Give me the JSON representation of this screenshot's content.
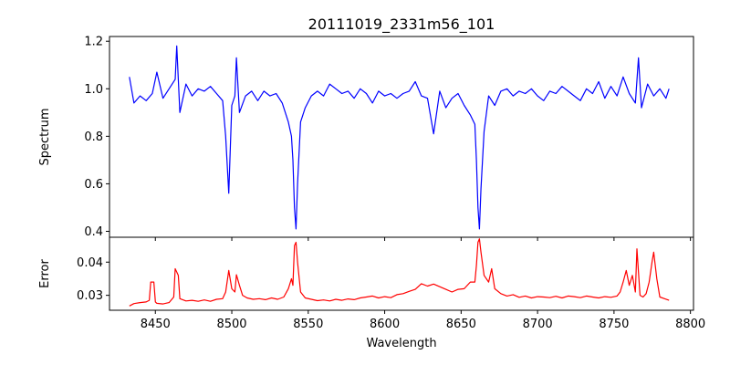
{
  "chart_data": [
    {
      "type": "line",
      "title": "20111019_2331m56_101",
      "ylabel": "Spectrum",
      "xlabel": "",
      "xlim": [
        8420,
        8802
      ],
      "ylim": [
        0.375,
        1.22
      ],
      "xticks": [
        8450,
        8500,
        8550,
        8600,
        8650,
        8700,
        8750,
        8800
      ],
      "yticks": [
        0.4,
        0.6,
        0.8,
        1.0,
        1.2
      ],
      "ytick_labels": [
        "0.4",
        "0.6",
        "0.8",
        "1.0",
        "1.2"
      ],
      "series": [
        {
          "name": "spectrum",
          "color": "#0000ff",
          "x": [
            8433,
            8436,
            8440,
            8444,
            8448,
            8451,
            8455,
            8459,
            8463,
            8464,
            8466,
            8470,
            8474,
            8478,
            8482,
            8486,
            8490,
            8494,
            8496,
            8498,
            8500,
            8502,
            8503,
            8505,
            8509,
            8513,
            8517,
            8521,
            8525,
            8529,
            8533,
            8537,
            8539,
            8540,
            8541,
            8542,
            8543,
            8545,
            8548,
            8552,
            8556,
            8560,
            8564,
            8568,
            8572,
            8576,
            8580,
            8584,
            8588,
            8592,
            8596,
            8600,
            8604,
            8608,
            8612,
            8616,
            8620,
            8624,
            8628,
            8632,
            8636,
            8640,
            8644,
            8648,
            8652,
            8656,
            8659,
            8660,
            8661,
            8662,
            8663,
            8665,
            8668,
            8672,
            8676,
            8680,
            8684,
            8688,
            8692,
            8696,
            8700,
            8704,
            8708,
            8712,
            8716,
            8720,
            8724,
            8728,
            8732,
            8736,
            8740,
            8744,
            8748,
            8752,
            8756,
            8760,
            8764,
            8766,
            8768,
            8772,
            8776,
            8780,
            8784,
            8786
          ],
          "values": [
            1.05,
            0.94,
            0.97,
            0.95,
            0.98,
            1.07,
            0.96,
            1.0,
            1.04,
            1.18,
            0.9,
            1.02,
            0.97,
            1.0,
            0.99,
            1.01,
            0.98,
            0.95,
            0.8,
            0.56,
            0.93,
            0.97,
            1.13,
            0.9,
            0.97,
            0.99,
            0.95,
            0.99,
            0.97,
            0.98,
            0.94,
            0.86,
            0.8,
            0.7,
            0.5,
            0.41,
            0.6,
            0.86,
            0.92,
            0.97,
            0.99,
            0.97,
            1.02,
            1.0,
            0.98,
            0.99,
            0.96,
            1.0,
            0.98,
            0.94,
            0.99,
            0.97,
            0.98,
            0.96,
            0.98,
            0.99,
            1.03,
            0.97,
            0.96,
            0.81,
            0.99,
            0.92,
            0.96,
            0.98,
            0.93,
            0.89,
            0.85,
            0.7,
            0.5,
            0.41,
            0.58,
            0.82,
            0.97,
            0.93,
            0.99,
            1.0,
            0.97,
            0.99,
            0.98,
            1.0,
            0.97,
            0.95,
            0.99,
            0.98,
            1.01,
            0.99,
            0.97,
            0.95,
            1.0,
            0.98,
            1.03,
            0.96,
            1.01,
            0.97,
            1.05,
            0.98,
            0.94,
            1.13,
            0.92,
            1.02,
            0.97,
            1.0,
            0.96,
            1.0
          ]
        }
      ]
    },
    {
      "type": "line",
      "title": "",
      "ylabel": "Error",
      "xlabel": "Wavelength",
      "xlim": [
        8420,
        8802
      ],
      "ylim": [
        0.0255,
        0.0475
      ],
      "xticks": [
        8450,
        8500,
        8550,
        8600,
        8650,
        8700,
        8750,
        8800
      ],
      "xtick_labels": [
        "8450",
        "8500",
        "8550",
        "8600",
        "8650",
        "8700",
        "8750",
        "8800"
      ],
      "yticks": [
        0.03,
        0.04
      ],
      "ytick_labels": [
        "0.03",
        "0.04"
      ],
      "series": [
        {
          "name": "error",
          "color": "#ff0000",
          "x": [
            8433,
            8436,
            8440,
            8444,
            8446,
            8447,
            8449,
            8450,
            8451,
            8455,
            8459,
            8462,
            8463,
            8465,
            8466,
            8470,
            8474,
            8478,
            8482,
            8486,
            8490,
            8494,
            8496,
            8498,
            8500,
            8502,
            8503,
            8505,
            8507,
            8510,
            8514,
            8518,
            8522,
            8526,
            8530,
            8534,
            8537,
            8539,
            8540,
            8541,
            8542,
            8543,
            8545,
            8548,
            8552,
            8556,
            8560,
            8564,
            8568,
            8572,
            8576,
            8580,
            8584,
            8588,
            8592,
            8596,
            8600,
            8604,
            8608,
            8612,
            8616,
            8620,
            8624,
            8628,
            8632,
            8636,
            8640,
            8644,
            8648,
            8652,
            8656,
            8659,
            8660,
            8661,
            8662,
            8663,
            8665,
            8668,
            8670,
            8672,
            8676,
            8680,
            8684,
            8688,
            8692,
            8696,
            8700,
            8704,
            8708,
            8712,
            8716,
            8720,
            8724,
            8728,
            8732,
            8736,
            8740,
            8744,
            8748,
            8752,
            8754,
            8756,
            8758,
            8760,
            8762,
            8764,
            8765,
            8766,
            8767,
            8769,
            8771,
            8773,
            8775,
            8776,
            8778,
            8780,
            8783,
            8786
          ],
          "values": [
            0.0268,
            0.0275,
            0.0278,
            0.028,
            0.0285,
            0.034,
            0.034,
            0.028,
            0.0276,
            0.0274,
            0.0278,
            0.0295,
            0.038,
            0.036,
            0.029,
            0.0283,
            0.0285,
            0.0282,
            0.0286,
            0.0282,
            0.0288,
            0.029,
            0.031,
            0.0375,
            0.032,
            0.031,
            0.0362,
            0.033,
            0.03,
            0.0292,
            0.0288,
            0.029,
            0.0287,
            0.0292,
            0.0288,
            0.0295,
            0.032,
            0.035,
            0.033,
            0.045,
            0.046,
            0.04,
            0.031,
            0.0292,
            0.0288,
            0.0284,
            0.0286,
            0.0283,
            0.0288,
            0.0285,
            0.0289,
            0.0287,
            0.0292,
            0.0295,
            0.0298,
            0.0292,
            0.0296,
            0.0293,
            0.0302,
            0.0305,
            0.0312,
            0.0318,
            0.0335,
            0.0328,
            0.0334,
            0.0326,
            0.0318,
            0.031,
            0.0318,
            0.032,
            0.034,
            0.034,
            0.039,
            0.046,
            0.047,
            0.043,
            0.036,
            0.034,
            0.038,
            0.032,
            0.0305,
            0.0298,
            0.0302,
            0.0294,
            0.0298,
            0.0292,
            0.0296,
            0.0295,
            0.0293,
            0.0297,
            0.0292,
            0.0298,
            0.0296,
            0.0293,
            0.0298,
            0.0295,
            0.0292,
            0.0296,
            0.0294,
            0.0298,
            0.031,
            0.034,
            0.0375,
            0.033,
            0.036,
            0.031,
            0.044,
            0.037,
            0.03,
            0.0295,
            0.0305,
            0.034,
            0.0405,
            0.043,
            0.035,
            0.0295,
            0.029,
            0.0285
          ]
        }
      ]
    }
  ]
}
